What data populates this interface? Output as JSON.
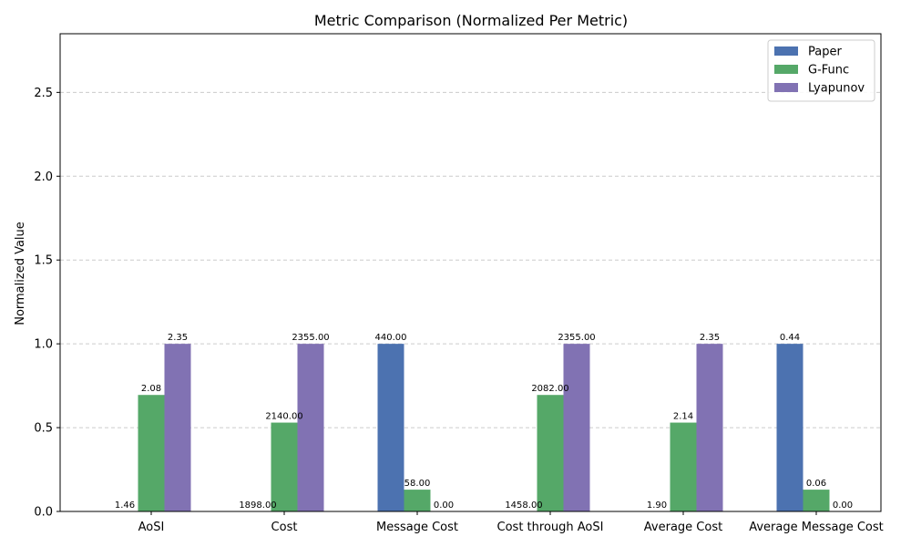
{
  "chart_data": {
    "type": "bar",
    "title": "Metric Comparison (Normalized Per Metric)",
    "xlabel": "",
    "ylabel": "Normalized Value",
    "ylim": [
      0,
      2.85
    ],
    "yticks": [
      "0.0",
      "0.5",
      "1.0",
      "1.5",
      "2.0",
      "2.5"
    ],
    "ytick_values": [
      0,
      0.5,
      1.0,
      1.5,
      2.0,
      2.5
    ],
    "grid": "y-dashed",
    "legend_position": "top-right",
    "categories": [
      "AoSI",
      "Cost",
      "Message Cost",
      "Cost through AoSI",
      "Average Cost",
      "Average Message Cost"
    ],
    "series": [
      {
        "name": "Paper",
        "color": "#4c72b0",
        "values": [
          0.0,
          0.0,
          1.0,
          0.0,
          0.0,
          1.0
        ],
        "labels": [
          "1.46",
          "1898.00",
          "440.00",
          "1458.00",
          "1.90",
          "0.44"
        ]
      },
      {
        "name": "G-Func",
        "color": "#55a868",
        "values": [
          0.695,
          0.53,
          0.13,
          0.695,
          0.53,
          0.13
        ],
        "labels": [
          "2.08",
          "2140.00",
          "58.00",
          "2082.00",
          "2.14",
          "0.06"
        ]
      },
      {
        "name": "Lyapunov",
        "color": "#8172b3",
        "values": [
          1.0,
          1.0,
          0.0,
          1.0,
          1.0,
          0.0
        ],
        "labels": [
          "2.35",
          "2355.00",
          "0.00",
          "2355.00",
          "2.35",
          "0.00"
        ]
      }
    ]
  }
}
